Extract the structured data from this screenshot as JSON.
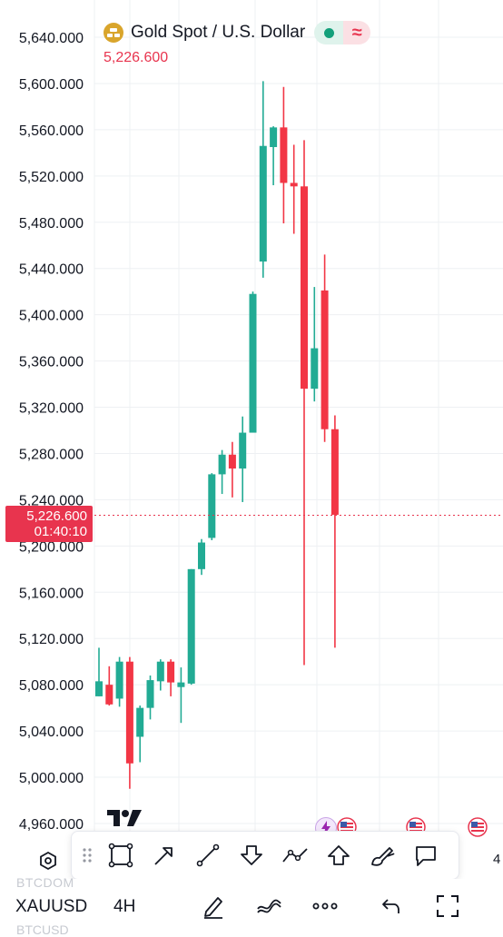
{
  "header": {
    "symbol_title": "Gold Spot / U.S. Dollar",
    "last_price": "5,226.600",
    "logo_icon": "gold-bars-icon",
    "status_icon": "market-open-dot-icon",
    "approx_icon": "approx-icon",
    "approx_glyph": "≈"
  },
  "price_tag": {
    "price": "5,226.600",
    "countdown": "01:40:10"
  },
  "axis": {
    "labels": [
      "5,640.000",
      "5,600.000",
      "5,560.000",
      "5,520.000",
      "5,480.000",
      "5,440.000",
      "5,400.000",
      "5,360.000",
      "5,320.000",
      "5,280.000",
      "5,240.000",
      "5,200.000",
      "5,160.000",
      "5,120.000",
      "5,080.000",
      "5,040.000",
      "5,000.000",
      "4,960.000"
    ]
  },
  "colors": {
    "up": "#22ab94",
    "down": "#f23645",
    "price_line": "#e8344e",
    "grid": "#eef0f3"
  },
  "chart_data": {
    "type": "candlestick",
    "symbol": "XAUUSD",
    "interval": "4H",
    "ylim": [
      4950,
      5650
    ],
    "current_price": 5226.6,
    "candles": [
      {
        "o": 5070,
        "h": 5112,
        "l": 5070,
        "c": 5083
      },
      {
        "o": 5080,
        "h": 5096,
        "l": 5062,
        "c": 5063
      },
      {
        "o": 5068,
        "h": 5104,
        "l": 5061,
        "c": 5100
      },
      {
        "o": 5100,
        "h": 5104,
        "l": 4990,
        "c": 5012
      },
      {
        "o": 5035,
        "h": 5062,
        "l": 5013,
        "c": 5060
      },
      {
        "o": 5060,
        "h": 5088,
        "l": 5050,
        "c": 5084
      },
      {
        "o": 5083,
        "h": 5102,
        "l": 5075,
        "c": 5100
      },
      {
        "o": 5100,
        "h": 5102,
        "l": 5070,
        "c": 5082
      },
      {
        "o": 5078,
        "h": 5095,
        "l": 5047,
        "c": 5082
      },
      {
        "o": 5081,
        "h": 5180,
        "l": 5080,
        "c": 5180
      },
      {
        "o": 5180,
        "h": 5206,
        "l": 5175,
        "c": 5203
      },
      {
        "o": 5207,
        "h": 5263,
        "l": 5205,
        "c": 5262
      },
      {
        "o": 5262,
        "h": 5283,
        "l": 5245,
        "c": 5279
      },
      {
        "o": 5279,
        "h": 5290,
        "l": 5242,
        "c": 5267
      },
      {
        "o": 5267,
        "h": 5312,
        "l": 5238,
        "c": 5298
      },
      {
        "o": 5298,
        "h": 5420,
        "l": 5298,
        "c": 5418
      },
      {
        "o": 5446,
        "h": 5602,
        "l": 5432,
        "c": 5546
      },
      {
        "o": 5545,
        "h": 5563,
        "l": 5512,
        "c": 5562
      },
      {
        "o": 5562,
        "h": 5597,
        "l": 5479,
        "c": 5514
      },
      {
        "o": 5514,
        "h": 5547,
        "l": 5470,
        "c": 5511
      },
      {
        "o": 5511,
        "h": 5551,
        "l": 5097,
        "c": 5336
      },
      {
        "o": 5336,
        "h": 5424,
        "l": 5325,
        "c": 5371
      },
      {
        "o": 5421,
        "h": 5452,
        "l": 5290,
        "c": 5301
      },
      {
        "o": 5301,
        "h": 5313,
        "l": 5112,
        "c": 5227
      }
    ]
  },
  "toolbar": {
    "tools": [
      "grip-dots-icon",
      "rectangle-tool-icon",
      "arrow-tool-icon",
      "line-tool-icon",
      "arrow-down-marker-icon",
      "path-tool-icon",
      "arrow-up-marker-icon",
      "brush-tool-icon",
      "callout-tool-icon"
    ]
  },
  "side_icons": {
    "settings": "hexagon-settings-icon",
    "right_digit": "4"
  },
  "events": {
    "icons": [
      "flash-event-icon",
      "us-flag-event-icon",
      "us-flag-event-icon",
      "us-flag-event-icon"
    ]
  },
  "bottom_bar": {
    "ghost_top": "BTCDOM",
    "ghost_bottom": "BTCUSD",
    "symbol": "XAUUSD",
    "interval": "4H",
    "icons": [
      "draw-pen-icon",
      "indicators-icon",
      "more-icon",
      "undo-icon",
      "fullscreen-icon"
    ]
  },
  "brand": {
    "logo": "tradingview-logo-icon"
  }
}
